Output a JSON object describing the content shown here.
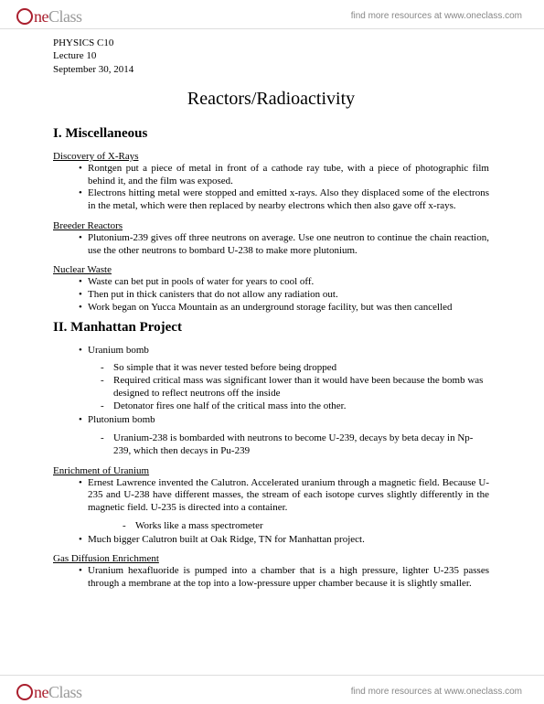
{
  "brand": {
    "one": "ne",
    "class": "Class",
    "link": "find more resources at www.oneclass.com"
  },
  "meta": {
    "course": "PHYSICS C10",
    "lecture": "Lecture 10",
    "date": "September 30, 2014"
  },
  "title": "Reactors/Radioactivity",
  "s1": {
    "heading": "I. Miscellaneous",
    "xrays": {
      "title": "Discovery of X-Rays",
      "b1": "Rontgen put a piece of metal in front of a cathode ray tube, with a piece of photographic film behind it, and the film was exposed.",
      "b2": "Electrons hitting metal were stopped and emitted x-rays. Also they displaced some of the electrons in the metal, which were then replaced by nearby electrons which then also gave off x-rays."
    },
    "breeder": {
      "title": "Breeder Reactors",
      "b1": "Plutonium-239 gives off three neutrons on average. Use one neutron to continue the chain reaction, use the other neutrons to bombard U-238 to make more plutonium."
    },
    "waste": {
      "title": "Nuclear Waste",
      "b1": "Waste can bet put in pools of water for years to cool off.",
      "b2": "Then put in thick canisters that do not allow any radiation out.",
      "b3": "Work began on Yucca Mountain as an underground storage facility, but was then cancelled"
    }
  },
  "s2": {
    "heading": "II. Manhattan Project",
    "ub": {
      "b1": "Uranium bomb",
      "s1": "So simple that it was never tested before being dropped",
      "s2": "Required critical mass was significant lower than it would have been because the bomb was designed to reflect neutrons off the inside",
      "s3": "Detonator fires one half of the critical mass into the other."
    },
    "pb": {
      "b1": "Plutonium bomb",
      "s1": "Uranium-238 is bombarded with neutrons to become U-239, decays by beta decay in Np-239, which then decays in Pu-239"
    },
    "enrich": {
      "title": "Enrichment of Uranium",
      "b1": "Ernest Lawrence invented the Calutron. Accelerated uranium through a magnetic field. Because U-235 and U-238 have different masses, the stream of each isotope curves slightly differently in the magnetic field. U-235 is directed into a container.",
      "s1": "Works like a mass spectrometer",
      "b2": "Much bigger Calutron built at Oak Ridge, TN for Manhattan project."
    },
    "gas": {
      "title": "Gas Diffusion Enrichment",
      "b1": "Uranium hexafluoride is pumped into a chamber that is a high pressure, lighter U-235 passes through a membrane at the top into a low-pressure upper chamber because it is slightly smaller."
    }
  }
}
